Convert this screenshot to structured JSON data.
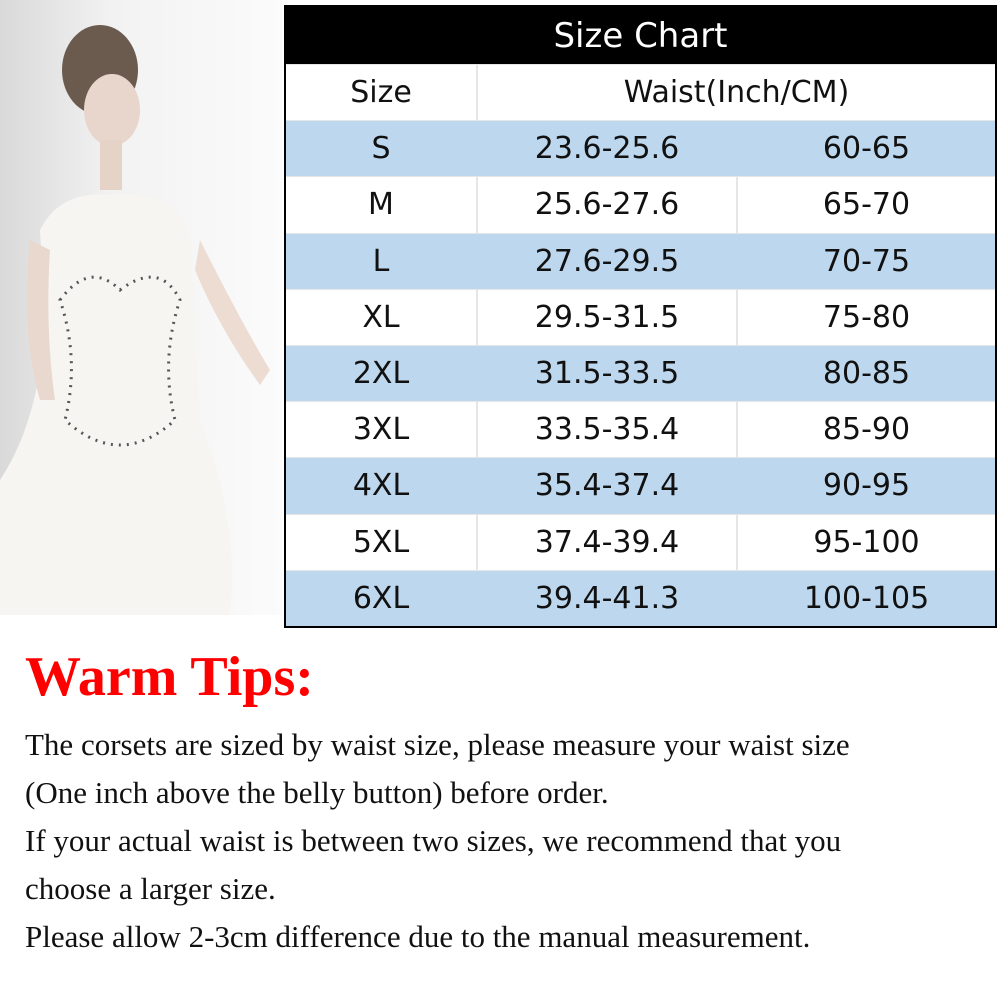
{
  "chart": {
    "title": "Size Chart",
    "headers": {
      "size": "Size",
      "waist": "Waist(Inch/CM)"
    },
    "rows": [
      {
        "size": "S",
        "inch": "23.6-25.6",
        "cm": "60-65"
      },
      {
        "size": "M",
        "inch": "25.6-27.6",
        "cm": "65-70"
      },
      {
        "size": "L",
        "inch": "27.6-29.5",
        "cm": "70-75"
      },
      {
        "size": "XL",
        "inch": "29.5-31.5",
        "cm": "75-80"
      },
      {
        "size": "2XL",
        "inch": "31.5-33.5",
        "cm": "80-85"
      },
      {
        "size": "3XL",
        "inch": "33.5-35.4",
        "cm": "85-90"
      },
      {
        "size": "4XL",
        "inch": "35.4-37.4",
        "cm": "90-95"
      },
      {
        "size": "5XL",
        "inch": "37.4-39.4",
        "cm": "95-100"
      },
      {
        "size": "6XL",
        "inch": "39.4-41.3",
        "cm": "100-105"
      }
    ],
    "colors": {
      "header_bg": "#000000",
      "stripe": "#bdd7ee"
    }
  },
  "tips": {
    "heading": "Warm Tips:",
    "heading_color": "#ff0000",
    "lines": [
      "The corsets are sized by waist size, please measure your waist size",
      "(One inch above the belly button) before order.",
      "If your actual waist is between two sizes, we recommend that you",
      "choose a larger size.",
      "Please allow 2-3cm difference due to the manual measurement."
    ]
  }
}
